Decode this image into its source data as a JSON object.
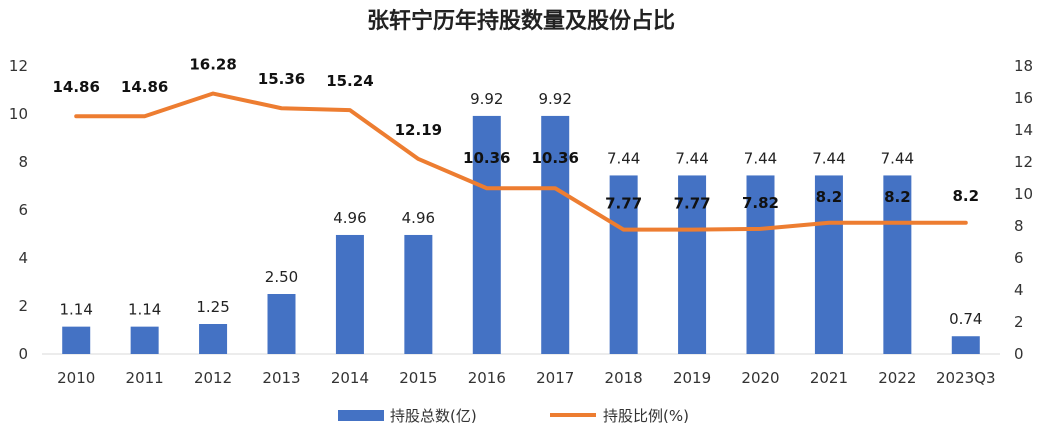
{
  "chart_data": {
    "type": "bar+line",
    "title": "张轩宁历年持股数量及股份占比",
    "categories": [
      "2010",
      "2011",
      "2012",
      "2013",
      "2014",
      "2015",
      "2016",
      "2017",
      "2018",
      "2019",
      "2020",
      "2021",
      "2022",
      "2023Q3"
    ],
    "series": [
      {
        "name": "持股总数(亿)",
        "type": "bar",
        "axis": "left",
        "values": [
          1.14,
          1.14,
          1.25,
          2.5,
          4.96,
          4.96,
          9.92,
          9.92,
          7.44,
          7.44,
          7.44,
          7.44,
          7.44,
          0.74
        ],
        "labels": [
          "1.14",
          "1.14",
          "1.25",
          "2.50",
          "4.96",
          "4.96",
          "9.92",
          "9.92",
          "7.44",
          "7.44",
          "7.44",
          "7.44",
          "7.44",
          "0.74"
        ],
        "color": "#4472C4"
      },
      {
        "name": "持股比例(%)",
        "type": "line",
        "axis": "right",
        "values": [
          14.86,
          14.86,
          16.28,
          15.36,
          15.24,
          12.19,
          10.36,
          10.36,
          7.77,
          7.77,
          7.82,
          8.2,
          8.2,
          8.2
        ],
        "labels": [
          "14.86",
          "14.86",
          "16.28",
          "15.36",
          "15.24",
          "12.19",
          "10.36",
          "10.36",
          "7.77",
          "7.77",
          "7.82",
          "8.2",
          "8.2",
          "8.2"
        ],
        "color": "#ED7D31"
      }
    ],
    "left_axis": {
      "min": 0,
      "max": 12,
      "ticks": [
        "0",
        "2",
        "4",
        "6",
        "8",
        "10",
        "12"
      ]
    },
    "right_axis": {
      "min": 0,
      "max": 18,
      "ticks": [
        "0",
        "2",
        "4",
        "6",
        "8",
        "10",
        "12",
        "14",
        "16",
        "18"
      ]
    },
    "legend": {
      "position": "bottom",
      "entries": [
        "持股总数(亿)",
        "持股比例(%)"
      ]
    },
    "grid": false
  }
}
